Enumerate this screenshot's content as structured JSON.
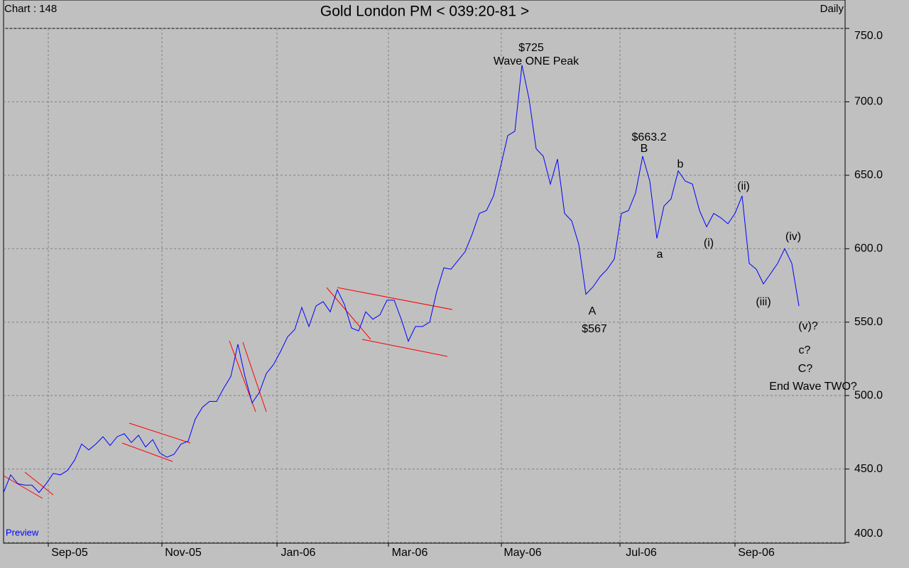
{
  "chart_data": {
    "type": "line",
    "chart_label": "Chart : 148",
    "title": "Gold London PM < 039:20-81 >",
    "frequency": "Daily",
    "watermark": "Preview",
    "ylim": [
      400,
      750
    ],
    "yticks": [
      {
        "value": 400,
        "label": "400.0"
      },
      {
        "value": 450,
        "label": "450.0"
      },
      {
        "value": 500,
        "label": "500.0"
      },
      {
        "value": 550,
        "label": "550.0"
      },
      {
        "value": 600,
        "label": "600.0"
      },
      {
        "value": 650,
        "label": "650.0"
      },
      {
        "value": 700,
        "label": "700.0"
      },
      {
        "value": 750,
        "label": "750.0"
      }
    ],
    "xlim": [
      0,
      118.5
    ],
    "xticks": [
      {
        "value": 6.3,
        "label": "Sep-05"
      },
      {
        "value": 22.3,
        "label": "Nov-05"
      },
      {
        "value": 38.5,
        "label": "Jan-06"
      },
      {
        "value": 54.2,
        "label": "Mar-06"
      },
      {
        "value": 70.1,
        "label": "May-06"
      },
      {
        "value": 86.8,
        "label": "Jul-06"
      },
      {
        "value": 103,
        "label": "Sep-06"
      }
    ],
    "grid": true,
    "color": "#0000ff",
    "values": [
      434,
      446,
      440,
      439,
      439,
      434,
      440,
      447,
      446,
      449,
      456,
      467,
      463,
      467,
      472,
      466,
      472,
      474,
      468,
      473,
      465,
      470,
      461,
      458,
      460,
      467,
      469,
      484,
      492,
      496,
      496,
      505,
      513,
      535,
      513,
      495,
      502,
      515,
      521,
      530,
      540,
      545,
      560,
      547,
      561,
      564,
      557,
      572,
      562,
      546,
      544,
      557,
      552,
      555,
      565,
      565,
      552,
      537,
      547,
      547,
      550,
      571,
      587,
      586,
      592,
      598,
      610,
      624,
      626,
      636,
      656,
      677,
      680,
      725,
      702,
      668,
      663,
      644,
      661,
      624,
      619,
      603,
      569,
      574,
      581,
      586,
      593,
      624,
      626,
      638,
      663,
      646,
      607,
      629,
      634,
      653,
      646,
      644,
      626,
      615,
      624,
      621,
      617,
      624,
      636,
      590,
      586,
      576,
      583,
      590,
      600,
      590,
      561
    ],
    "annotations": [
      "$725",
      "Wave ONE Peak",
      "$663.2",
      "B",
      "b",
      "(ii)",
      "a",
      "(i)",
      "(iv)",
      "A",
      "$567",
      "(iii)",
      "(v)?",
      "c?",
      "C?",
      "End Wave TWO?"
    ]
  }
}
